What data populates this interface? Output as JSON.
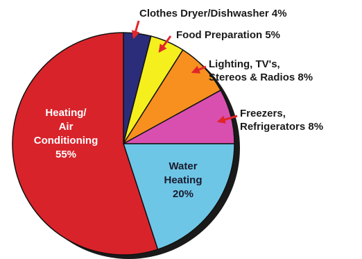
{
  "chart_data": {
    "type": "pie",
    "slices": [
      {
        "label": "Clothes Dryer/Dishwasher 4%",
        "lines": [
          "Clothes Dryer/Dishwasher 4%"
        ],
        "value": 4,
        "color": "#2b2d7a",
        "label_position": "outside"
      },
      {
        "label": "Food Preparation 5%",
        "lines": [
          "Food Preparation 5%"
        ],
        "value": 5,
        "color": "#f5ef1e",
        "label_position": "outside"
      },
      {
        "label": "Lighting, TV's, Stereos & Radios 8%",
        "lines": [
          "Lighting, TV's,",
          "Stereos & Radios 8%"
        ],
        "value": 8,
        "color": "#f7901e",
        "label_position": "outside"
      },
      {
        "label": "Freezers, Refrigerators 8%",
        "lines": [
          "Freezers,",
          "Refrigerators 8%"
        ],
        "value": 8,
        "color": "#d84fb0",
        "label_position": "outside"
      },
      {
        "label": "Water Heating 20%",
        "lines": [
          "Water",
          "Heating",
          "20%"
        ],
        "value": 20,
        "color": "#6ec6e6",
        "label_position": "inside"
      },
      {
        "label": "Heating/Air Conditioning 55%",
        "lines": [
          "Heating/",
          "Air",
          "Conditioning",
          "55%"
        ],
        "value": 55,
        "color": "#d9232a",
        "label_position": "inside"
      }
    ],
    "arrow_color": "#e0262b",
    "outline_color": "#111111",
    "shadow_color": "#1a1a1a"
  }
}
